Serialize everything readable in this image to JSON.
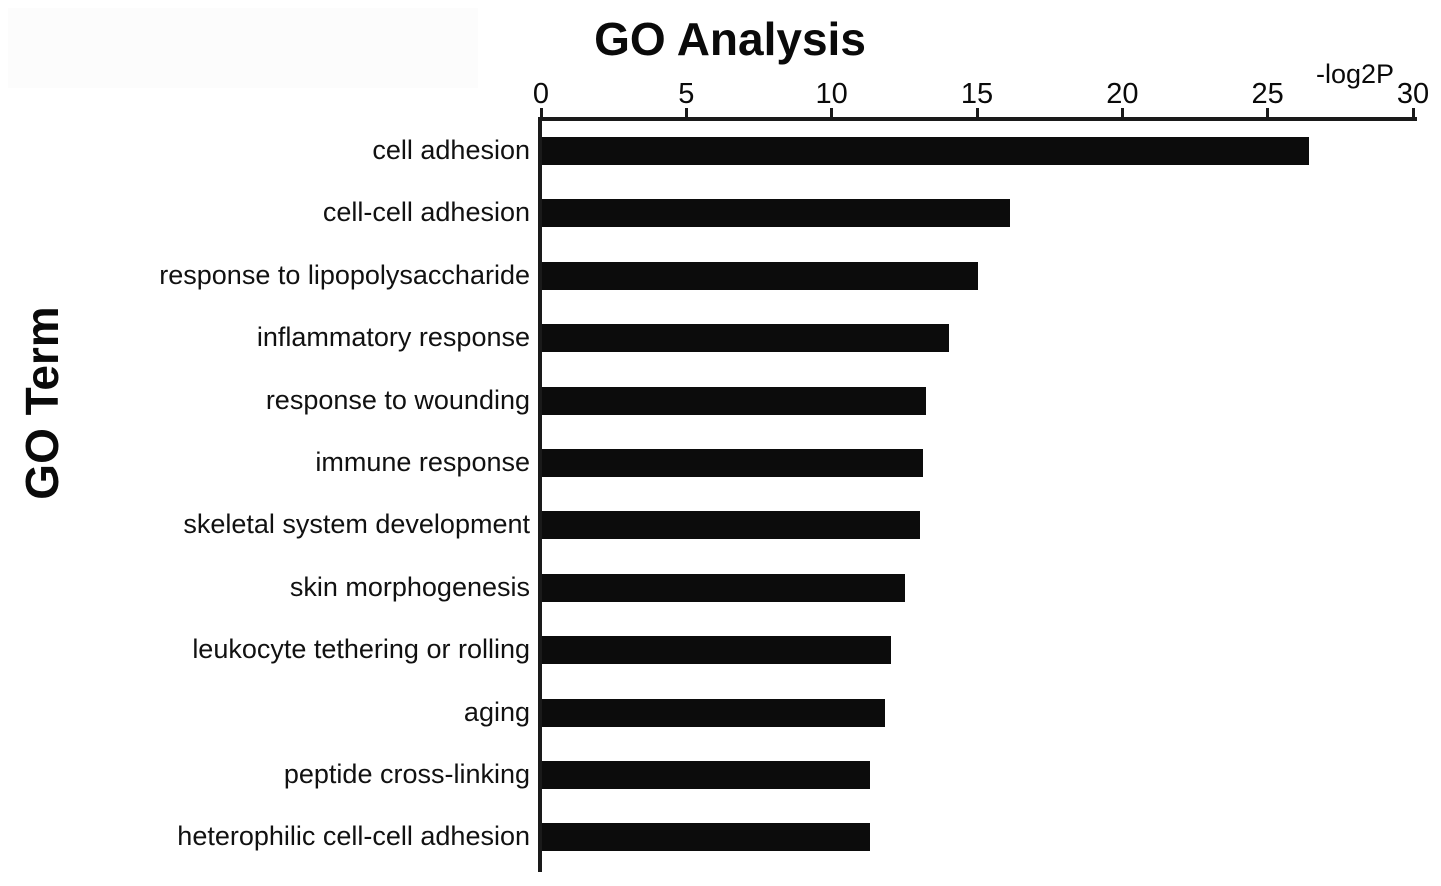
{
  "figure": {
    "background_color": "#ffffff",
    "text_color": "#0a0a0a"
  },
  "chart_data": {
    "type": "bar",
    "orientation": "horizontal",
    "title": "GO Analysis",
    "xlabel": "-log2P",
    "ylabel": "GO Term",
    "xlim": [
      0,
      30
    ],
    "xticks": [
      0,
      5,
      10,
      15,
      20,
      25,
      30
    ],
    "grid": false,
    "legend": false,
    "bar_color": "#0c0c0c",
    "axis_color": "#1a1a1a",
    "categories": [
      "cell adhesion",
      "cell-cell adhesion",
      "response to lipopolysaccharide",
      "inflammatory response",
      "response to wounding",
      "immune response",
      "skeletal system development",
      "skin morphogenesis",
      "leukocyte tethering or rolling",
      "aging",
      "peptide cross-linking",
      "heterophilic cell-cell adhesion"
    ],
    "values": [
      26.4,
      16.1,
      15.0,
      14.0,
      13.2,
      13.1,
      13.0,
      12.5,
      12.0,
      11.8,
      11.3,
      11.3
    ]
  }
}
